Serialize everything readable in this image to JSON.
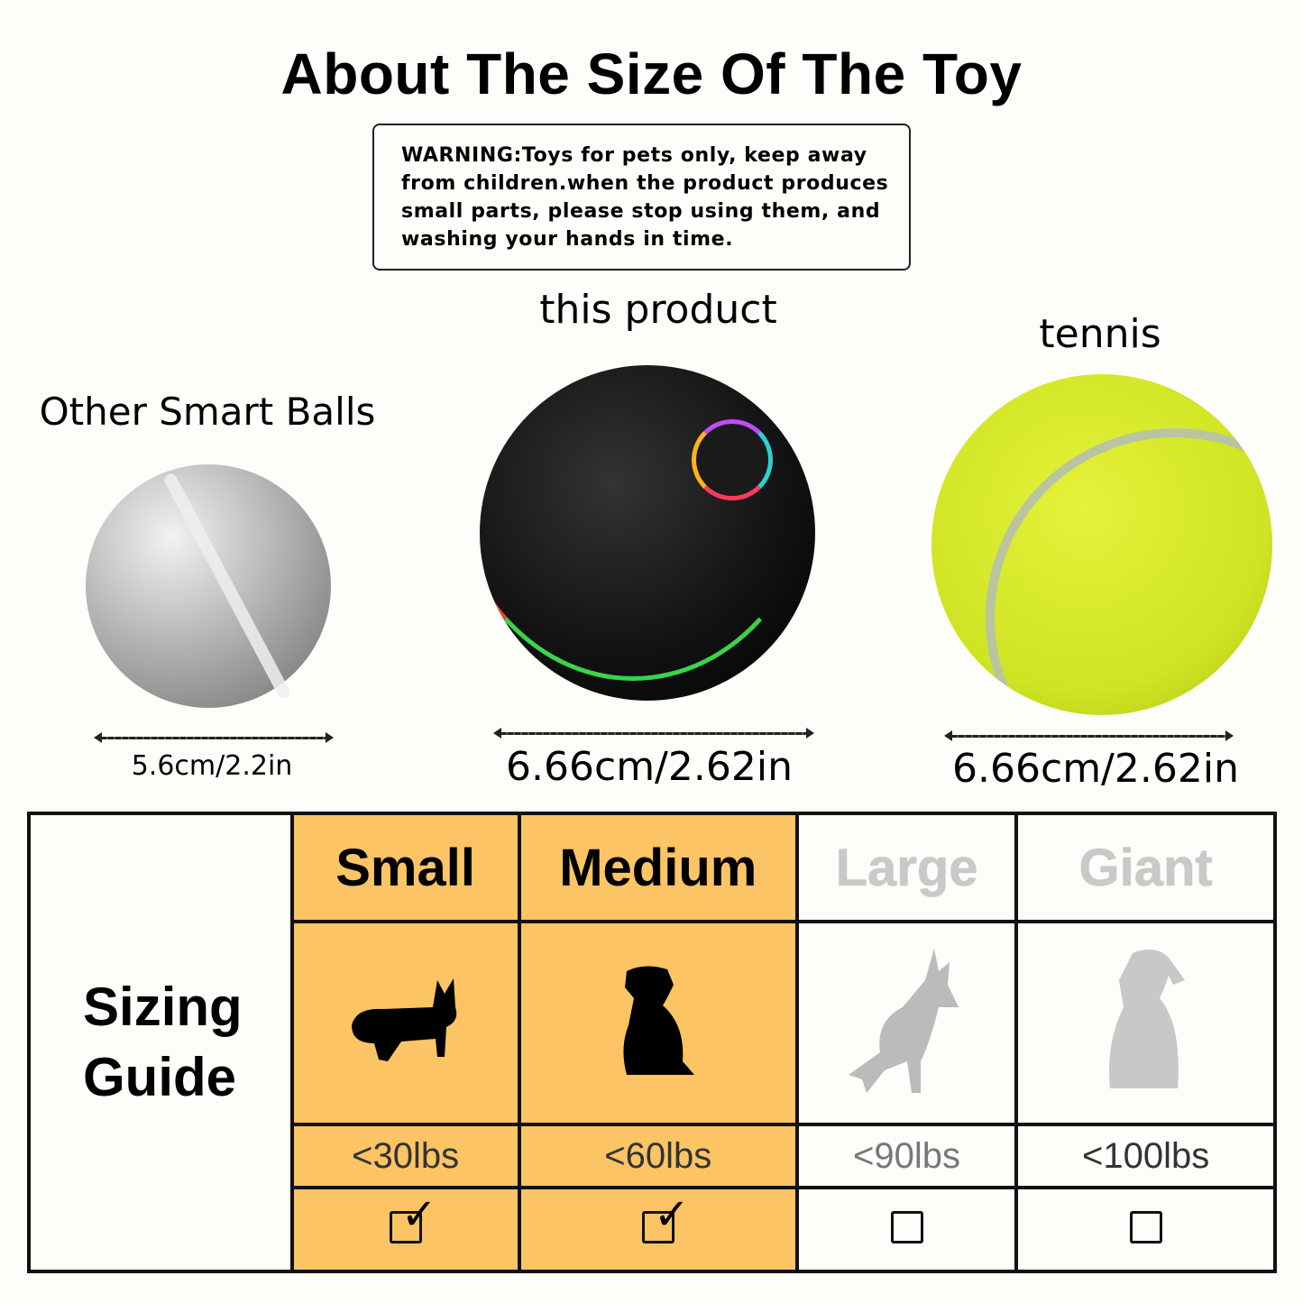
{
  "title": "About The Size Of The Toy",
  "warning": "WARNING:Toys for pets only, keep away from children.when the product produces small parts, please stop using them, and washing your hands in time.",
  "products": [
    {
      "label": "Other Smart Balls",
      "size": "5.6cm/2.2in",
      "color": "#b9b9b9"
    },
    {
      "label": "this product",
      "size": "6.66cm/2.62in",
      "color": "#1b1b1b"
    },
    {
      "label": "tennis",
      "size": "6.66cm/2.62in",
      "color": "#d8ea2a"
    }
  ],
  "sizing": {
    "label_line1": "Sizing",
    "label_line2": "Guide",
    "highlight_color": "#fcc464",
    "columns": [
      {
        "name": "Small",
        "dog_icon": "corgi-icon",
        "weight": "<30lbs",
        "checked": true
      },
      {
        "name": "Medium",
        "dog_icon": "puppy-sitting-icon",
        "weight": "<60lbs",
        "checked": true
      },
      {
        "name": "Large",
        "dog_icon": "shepherd-icon",
        "weight": "<90lbs",
        "checked": false
      },
      {
        "name": "Giant",
        "dog_icon": "large-dog-sitting-icon",
        "weight": "<100lbs",
        "checked": false
      }
    ]
  }
}
